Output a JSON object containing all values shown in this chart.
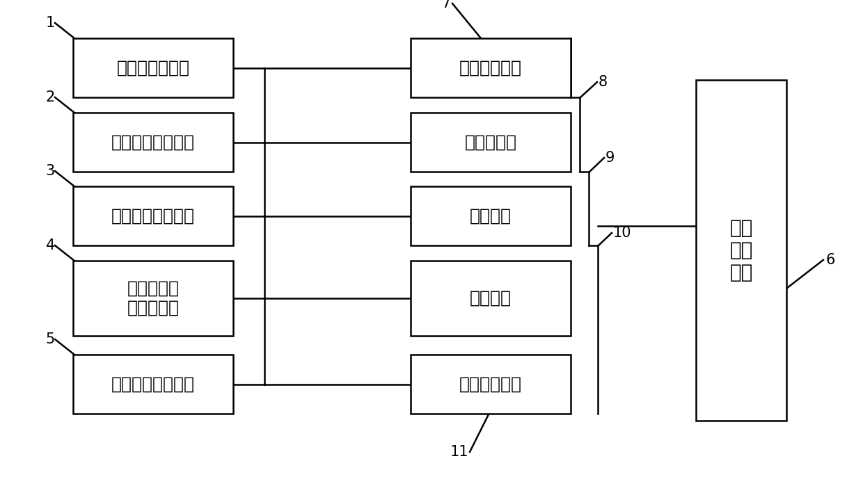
{
  "background_color": "#ffffff",
  "left_boxes": [
    {
      "lines": [
        "习惯行为数据库"
      ],
      "id": 1
    },
    {
      "lines": [
        "习惯行为收集模块"
      ],
      "id": 2
    },
    {
      "lines": [
        "习惯行为编排模块"
      ],
      "id": 3
    },
    {
      "lines": [
        "习惯行为执",
        "行反馈模块"
      ],
      "id": 4
    },
    {
      "lines": [
        "习惯行为评价模块"
      ],
      "id": 5
    }
  ],
  "middle_boxes": [
    {
      "label": "养成对象模块",
      "id": 7
    },
    {
      "label": "干系人模块",
      "id": 8
    },
    {
      "label": "机构模块",
      "id": 9
    },
    {
      "label": "学校模块",
      "id": 10
    },
    {
      "label": "平台管理模块",
      "id": 11
    }
  ],
  "right_box": {
    "lines": [
      "激励",
      "机制",
      "模块"
    ],
    "id": 6
  },
  "font_size": 18,
  "label_font_size": 15,
  "lw": 1.8
}
